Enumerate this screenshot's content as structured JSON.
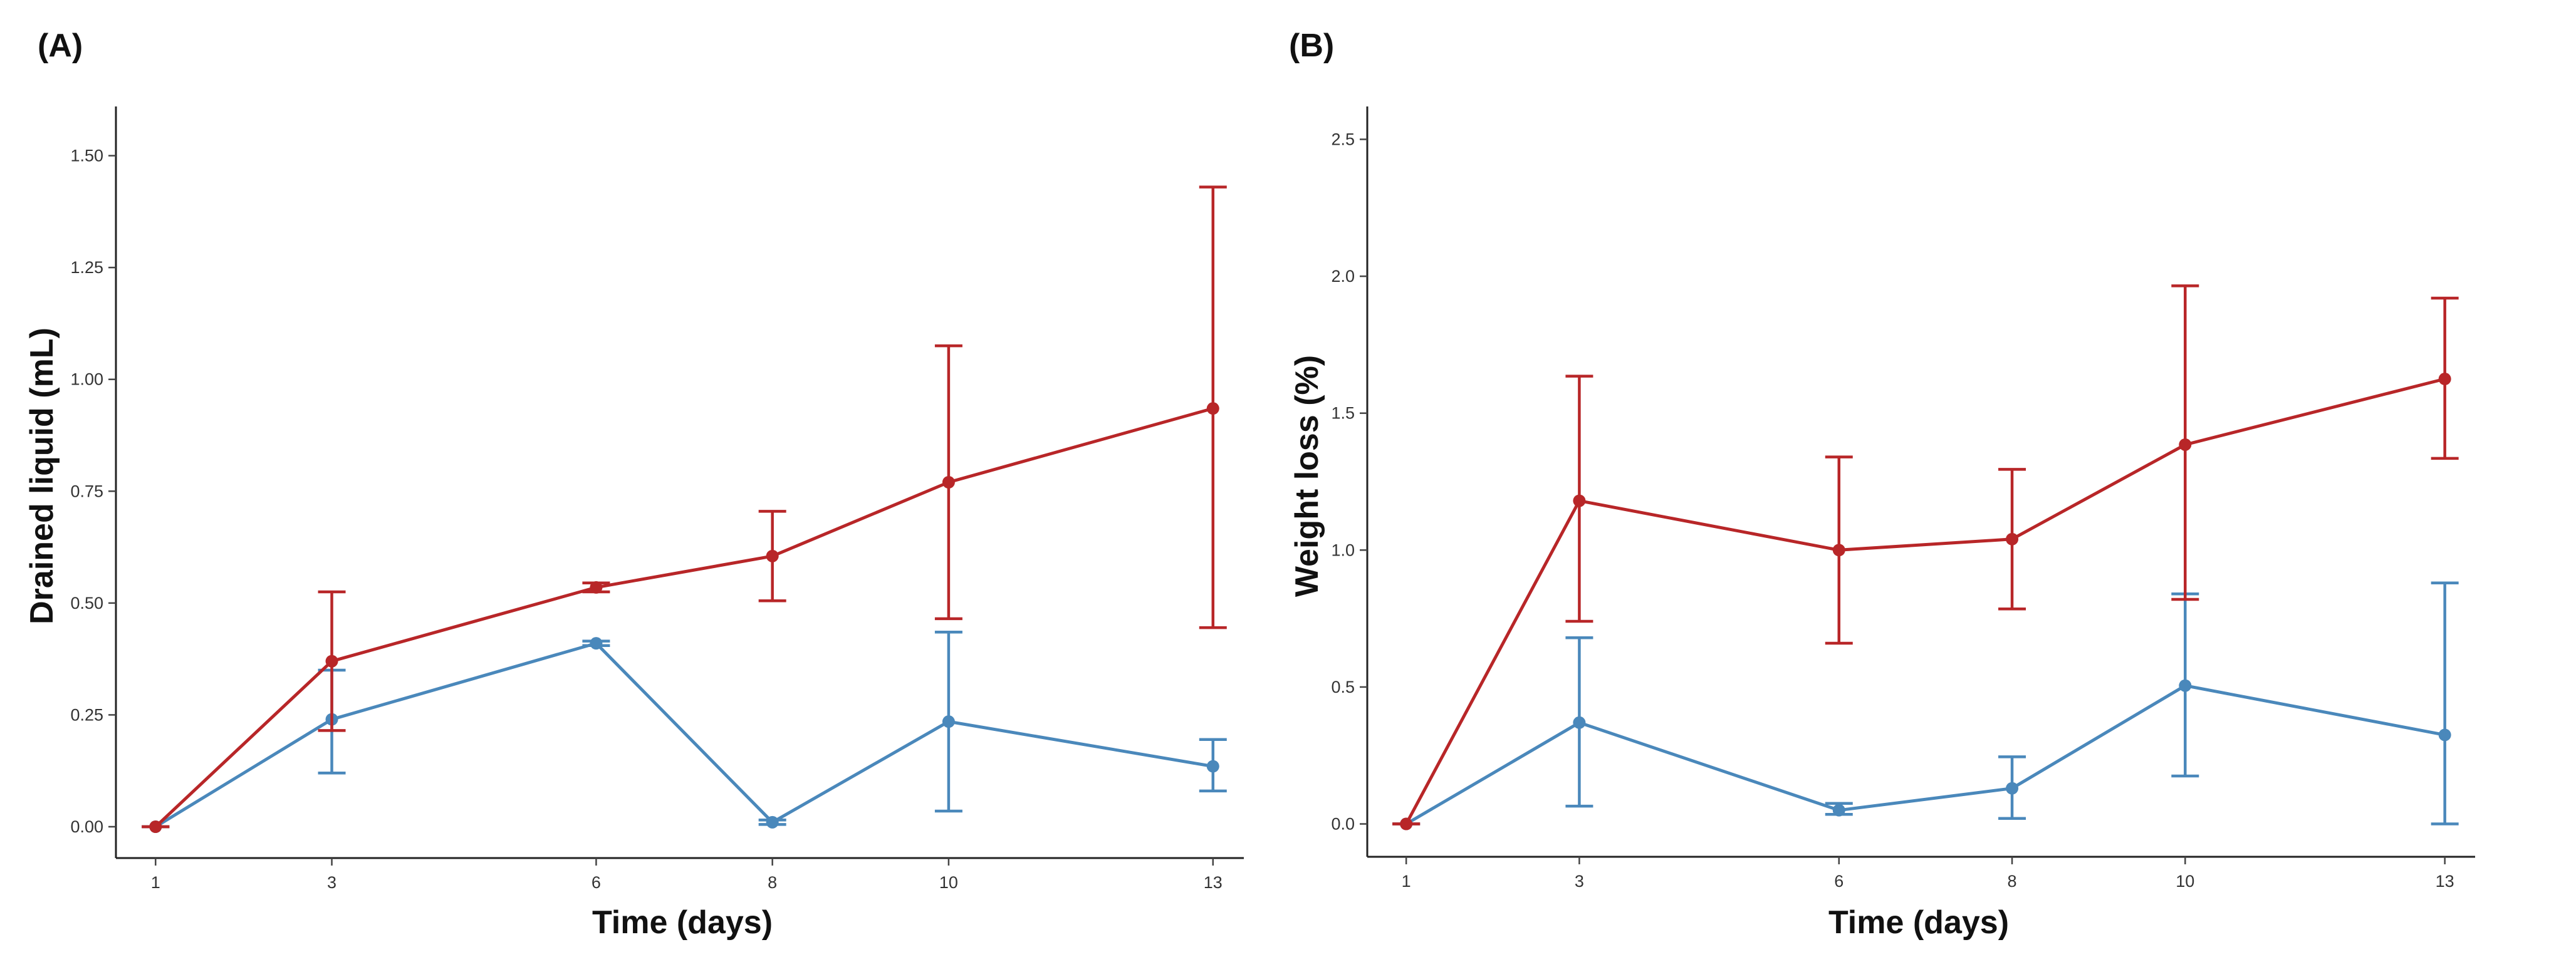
{
  "figure": {
    "background": "#ffffff",
    "colors": {
      "red": "#b82628",
      "blue": "#4a88bb"
    }
  },
  "chart_data": [
    {
      "type": "line",
      "panel_label": "(A)",
      "title": "",
      "xlabel": "Time (days)",
      "ylabel": "Drained liquid (mL)",
      "x": [
        1,
        3,
        6,
        8,
        10,
        13
      ],
      "x_tick_labels": [
        "1",
        "3",
        "6",
        "8",
        "10",
        "13"
      ],
      "xlim": [
        0.55,
        13.35
      ],
      "ylim": [
        -0.07,
        1.61
      ],
      "y_ticks": [
        0,
        0.25,
        0.5,
        0.75,
        1.0,
        1.25,
        1.5
      ],
      "y_tick_labels": [
        "0.00",
        "0.25",
        "0.50",
        "0.75",
        "1.00",
        "1.25",
        "1.50"
      ],
      "grid": false,
      "legend": "none",
      "series": [
        {
          "name": "red",
          "color": "#b82628",
          "values": [
            0.0,
            0.37,
            0.535,
            0.605,
            0.77,
            0.935
          ],
          "err_low": [
            0.0,
            0.215,
            0.525,
            0.505,
            0.465,
            0.445
          ],
          "err_high": [
            0.0,
            0.525,
            0.545,
            0.705,
            1.075,
            1.43
          ]
        },
        {
          "name": "blue",
          "color": "#4a88bb",
          "values": [
            0.0,
            0.24,
            0.41,
            0.01,
            0.235,
            0.135
          ],
          "err_low": [
            0.0,
            0.12,
            0.405,
            0.005,
            0.035,
            0.08
          ],
          "err_high": [
            0.0,
            0.35,
            0.415,
            0.015,
            0.435,
            0.195
          ]
        }
      ]
    },
    {
      "type": "line",
      "panel_label": "(B)",
      "title": "",
      "xlabel": "Time (days)",
      "ylabel": "Weight loss (%)",
      "x": [
        1,
        3,
        6,
        8,
        10,
        13
      ],
      "x_tick_labels": [
        "1",
        "3",
        "6",
        "8",
        "10",
        "13"
      ],
      "xlim": [
        0.55,
        13.35
      ],
      "ylim": [
        -0.12,
        2.62
      ],
      "y_ticks": [
        0,
        0.5,
        1.0,
        1.5,
        2.0,
        2.5
      ],
      "y_tick_labels": [
        "0.0",
        "0.5",
        "1.0",
        "1.5",
        "2.0",
        "2.5"
      ],
      "grid": false,
      "legend": "none",
      "series": [
        {
          "name": "red",
          "color": "#b82628",
          "values": [
            0.0,
            1.18,
            1.0,
            1.04,
            1.385,
            1.625
          ],
          "err_low": [
            0.0,
            0.74,
            0.66,
            0.785,
            0.82,
            1.335
          ],
          "err_high": [
            0.0,
            1.635,
            1.34,
            1.295,
            1.965,
            1.92
          ]
        },
        {
          "name": "blue",
          "color": "#4a88bb",
          "values": [
            0.0,
            0.37,
            0.05,
            0.13,
            0.505,
            0.325
          ],
          "err_low": [
            0.0,
            0.065,
            0.035,
            0.02,
            0.175,
            0.0
          ],
          "err_high": [
            0.0,
            0.68,
            0.075,
            0.245,
            0.84,
            0.88
          ]
        }
      ]
    }
  ]
}
